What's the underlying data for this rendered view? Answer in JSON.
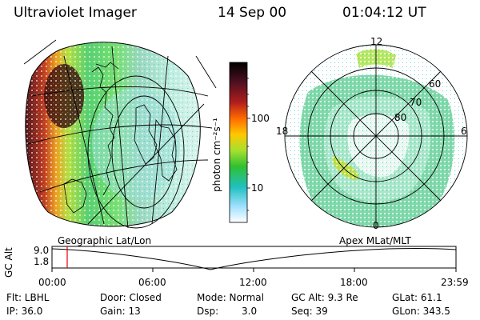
{
  "header": {
    "instrument": "Ultraviolet Imager",
    "date": "14 Sep 00",
    "time": "01:04:12 UT"
  },
  "colorbar": {
    "unit_label": "photon cm⁻²s⁻¹",
    "ticks": [
      "100",
      "10"
    ],
    "scale": "log"
  },
  "polar_plot": {
    "mlt_labels": {
      "top": "12",
      "left": "18",
      "right": "6",
      "bottom": "0"
    },
    "lat_labels": [
      "60",
      "70",
      "80"
    ]
  },
  "labels": {
    "geographic": "Geographic Lat/Lon",
    "apex": "Apex  MLat/MLT"
  },
  "alt_plot": {
    "axis_label": "GC Alt",
    "y_ticks": [
      "9.0",
      "1.8"
    ],
    "x_ticks": [
      "00:00",
      "06:00",
      "12:00",
      "18:00",
      "23:59"
    ],
    "marker_time": "01:04"
  },
  "info": {
    "filter": "Flt: LBHL",
    "ip": "IP: 36.0",
    "door": "Door: Closed",
    "gain": "Gain: 13",
    "mode": "Mode: Normal",
    "dsp_label": "Dsp:",
    "dsp_value": "3.0",
    "gc_alt": "GC Alt: 9.3 Re",
    "seq": "Seq: 39",
    "glat": "GLat:  61.1",
    "glon": "GLon: 343.5"
  },
  "colors": {
    "marker": "#e00000",
    "grid": "#000000"
  }
}
